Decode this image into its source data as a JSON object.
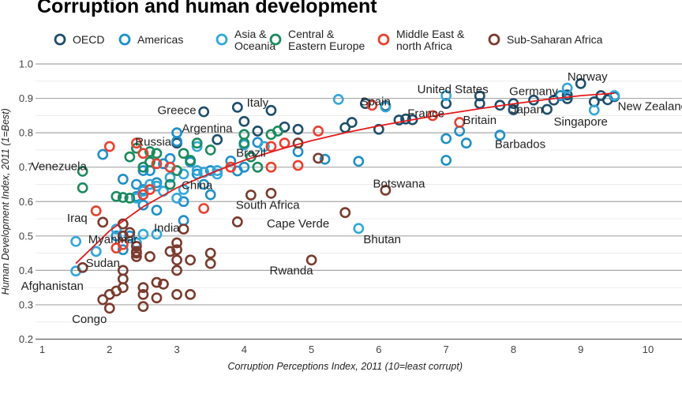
{
  "chart_data": {
    "type": "scatter",
    "title": "Corruption and human development",
    "xlabel": "Corruption Perceptions Index, 2011 (10=least corrupt)",
    "ylabel": "Human Development Index, 2011 (1=Best)",
    "xlim": [
      1,
      10
    ],
    "ylim": [
      0.2,
      1.0
    ],
    "x_ticks": [
      1,
      2,
      3,
      4,
      5,
      6,
      7,
      8,
      9,
      10
    ],
    "y_ticks": [
      0.2,
      0.3,
      0.4,
      0.5,
      0.6,
      0.7,
      0.8,
      0.9,
      1.0
    ],
    "grid": "horizontal",
    "legend_position": "top",
    "series": [
      {
        "name": "OECD",
        "color": "#1f4e6b",
        "points": [
          [
            7.5,
            0.907
          ],
          [
            8.5,
            0.868
          ],
          [
            9.0,
            0.943
          ],
          [
            9.3,
            0.908
          ],
          [
            9.5,
            0.905
          ],
          [
            8.8,
            0.899
          ],
          [
            7.5,
            0.885
          ],
          [
            8.0,
            0.885
          ],
          [
            8.0,
            0.867
          ],
          [
            8.3,
            0.895
          ],
          [
            8.6,
            0.895
          ],
          [
            8.8,
            0.91
          ],
          [
            9.4,
            0.896
          ],
          [
            9.2,
            0.89
          ],
          [
            7.0,
            0.885
          ],
          [
            6.5,
            0.838
          ],
          [
            6.1,
            0.878
          ],
          [
            5.8,
            0.885
          ],
          [
            5.6,
            0.83
          ],
          [
            5.5,
            0.815
          ],
          [
            4.8,
            0.81
          ],
          [
            4.6,
            0.817
          ],
          [
            4.4,
            0.865
          ],
          [
            3.9,
            0.874
          ],
          [
            3.4,
            0.861
          ],
          [
            4.0,
            0.833
          ],
          [
            4.2,
            0.805
          ],
          [
            3.6,
            0.78
          ],
          [
            3.0,
            0.77
          ],
          [
            6.0,
            0.81
          ],
          [
            6.3,
            0.837
          ],
          [
            6.4,
            0.84
          ],
          [
            7.8,
            0.88
          ]
        ]
      },
      {
        "name": "Americas",
        "color": "#1e8fc8",
        "points": [
          [
            8.7,
            0.908
          ],
          [
            7.8,
            0.793
          ],
          [
            7.2,
            0.805
          ],
          [
            7.0,
            0.72
          ],
          [
            7.0,
            0.783
          ],
          [
            7.3,
            0.77
          ],
          [
            5.7,
            0.717
          ],
          [
            5.2,
            0.723
          ],
          [
            4.8,
            0.745
          ],
          [
            4.2,
            0.772
          ],
          [
            3.8,
            0.718
          ],
          [
            3.9,
            0.689
          ],
          [
            3.5,
            0.69
          ],
          [
            3.4,
            0.685
          ],
          [
            3.3,
            0.68
          ],
          [
            3.2,
            0.715
          ],
          [
            3.0,
            0.8
          ],
          [
            3.0,
            0.775
          ],
          [
            2.9,
            0.725
          ],
          [
            2.7,
            0.655
          ],
          [
            2.6,
            0.69
          ],
          [
            2.5,
            0.69
          ],
          [
            2.5,
            0.635
          ],
          [
            2.4,
            0.65
          ],
          [
            2.4,
            0.615
          ],
          [
            2.2,
            0.665
          ],
          [
            2.5,
            0.59
          ],
          [
            2.7,
            0.575
          ],
          [
            2.3,
            0.5
          ],
          [
            2.1,
            0.5
          ],
          [
            1.9,
            0.737
          ],
          [
            2.2,
            0.46
          ],
          [
            1.8,
            0.455
          ],
          [
            3.1,
            0.545
          ],
          [
            3.5,
            0.62
          ],
          [
            4.0,
            0.7
          ],
          [
            2.8,
            0.71
          ],
          [
            3.4,
            0.65
          ],
          [
            3.1,
            0.6
          ]
        ]
      },
      {
        "name": "Asia & Oceania",
        "color": "#33a7d8",
        "points": [
          [
            9.5,
            0.908
          ],
          [
            9.2,
            0.866
          ],
          [
            8.8,
            0.93
          ],
          [
            7.0,
            0.908
          ],
          [
            6.1,
            0.875
          ],
          [
            5.4,
            0.897
          ],
          [
            4.3,
            0.76
          ],
          [
            4.0,
            0.765
          ],
          [
            3.1,
            0.68
          ],
          [
            3.6,
            0.69
          ],
          [
            3.4,
            0.685
          ],
          [
            3.1,
            0.635
          ],
          [
            2.9,
            0.67
          ],
          [
            2.8,
            0.63
          ],
          [
            2.7,
            0.645
          ],
          [
            2.6,
            0.65
          ],
          [
            2.5,
            0.63
          ],
          [
            2.4,
            0.61
          ],
          [
            2.7,
            0.505
          ],
          [
            3.0,
            0.61
          ],
          [
            2.5,
            0.505
          ],
          [
            2.4,
            0.48
          ],
          [
            2.1,
            0.52
          ],
          [
            1.5,
            0.484
          ],
          [
            1.8,
            0.455
          ],
          [
            1.5,
            0.398
          ],
          [
            2.2,
            0.5
          ],
          [
            5.7,
            0.522
          ],
          [
            3.3,
            0.69
          ],
          [
            3.3,
            0.76
          ],
          [
            3.6,
            0.68
          ]
        ]
      },
      {
        "name": "Central & Eastern Europe",
        "color": "#1b8a5e",
        "points": [
          [
            1.6,
            0.688
          ],
          [
            1.6,
            0.64
          ],
          [
            2.1,
            0.615
          ],
          [
            2.3,
            0.61
          ],
          [
            2.3,
            0.73
          ],
          [
            2.4,
            0.755
          ],
          [
            2.6,
            0.745
          ],
          [
            2.5,
            0.7
          ],
          [
            2.7,
            0.74
          ],
          [
            2.9,
            0.65
          ],
          [
            3.1,
            0.74
          ],
          [
            3.3,
            0.77
          ],
          [
            3.5,
            0.75
          ],
          [
            4.0,
            0.77
          ],
          [
            4.2,
            0.7
          ],
          [
            4.0,
            0.795
          ],
          [
            4.4,
            0.795
          ],
          [
            4.5,
            0.805
          ],
          [
            4.1,
            0.73
          ],
          [
            2.6,
            0.715
          ],
          [
            3.2,
            0.72
          ],
          [
            2.2,
            0.612
          ],
          [
            3.0,
            0.69
          ]
        ]
      },
      {
        "name": "Middle East & north Africa",
        "color": "#e8412f",
        "points": [
          [
            7.2,
            0.83
          ],
          [
            6.8,
            0.85
          ],
          [
            5.9,
            0.88
          ],
          [
            5.1,
            0.805
          ],
          [
            4.8,
            0.705
          ],
          [
            4.6,
            0.77
          ],
          [
            4.4,
            0.7
          ],
          [
            4.4,
            0.76
          ],
          [
            3.8,
            0.7
          ],
          [
            3.4,
            0.58
          ],
          [
            2.9,
            0.7
          ],
          [
            2.7,
            0.71
          ],
          [
            2.6,
            0.635
          ],
          [
            2.5,
            0.74
          ],
          [
            2.4,
            0.77
          ],
          [
            2.0,
            0.76
          ],
          [
            1.8,
            0.573
          ],
          [
            2.2,
            0.475
          ],
          [
            2.1,
            0.465
          ],
          [
            2.5,
            0.62
          ]
        ]
      },
      {
        "name": "Sub-Saharan Africa",
        "color": "#7a3b2e",
        "points": [
          [
            6.1,
            0.633
          ],
          [
            5.5,
            0.568
          ],
          [
            5.0,
            0.43
          ],
          [
            4.8,
            0.77
          ],
          [
            5.1,
            0.726
          ],
          [
            4.4,
            0.624
          ],
          [
            4.1,
            0.619
          ],
          [
            3.9,
            0.541
          ],
          [
            3.5,
            0.45
          ],
          [
            3.5,
            0.42
          ],
          [
            3.2,
            0.43
          ],
          [
            3.1,
            0.52
          ],
          [
            3.0,
            0.48
          ],
          [
            3.0,
            0.46
          ],
          [
            3.0,
            0.43
          ],
          [
            3.0,
            0.4
          ],
          [
            2.9,
            0.455
          ],
          [
            2.8,
            0.36
          ],
          [
            2.7,
            0.365
          ],
          [
            2.7,
            0.32
          ],
          [
            2.5,
            0.35
          ],
          [
            2.5,
            0.33
          ],
          [
            2.5,
            0.295
          ],
          [
            2.4,
            0.47
          ],
          [
            2.4,
            0.455
          ],
          [
            2.4,
            0.44
          ],
          [
            2.2,
            0.535
          ],
          [
            2.2,
            0.5
          ],
          [
            2.2,
            0.4
          ],
          [
            2.2,
            0.375
          ],
          [
            2.2,
            0.35
          ],
          [
            2.1,
            0.34
          ],
          [
            2.0,
            0.33
          ],
          [
            2.0,
            0.29
          ],
          [
            1.9,
            0.315
          ],
          [
            1.9,
            0.54
          ],
          [
            1.6,
            0.408
          ],
          [
            2.6,
            0.44
          ],
          [
            3.0,
            0.33
          ],
          [
            3.2,
            0.33
          ],
          [
            2.3,
            0.51
          ],
          [
            2.4,
            0.45
          ]
        ]
      }
    ],
    "trend_line": {
      "color": "#e41a1c",
      "points": [
        [
          1.5,
          0.42
        ],
        [
          2.0,
          0.515
        ],
        [
          2.5,
          0.585
        ],
        [
          3.0,
          0.64
        ],
        [
          3.5,
          0.682
        ],
        [
          4.0,
          0.72
        ],
        [
          4.5,
          0.75
        ],
        [
          5.0,
          0.777
        ],
        [
          5.5,
          0.8
        ],
        [
          6.0,
          0.82
        ],
        [
          6.5,
          0.838
        ],
        [
          7.0,
          0.855
        ],
        [
          7.5,
          0.87
        ],
        [
          8.0,
          0.884
        ],
        [
          8.5,
          0.897
        ],
        [
          9.0,
          0.908
        ],
        [
          9.5,
          0.915
        ]
      ]
    },
    "annotations": [
      {
        "text": "Norway",
        "x": 9.1,
        "y": 0.963,
        "anchor": "middle"
      },
      {
        "text": "United States",
        "x": 7.1,
        "y": 0.926,
        "anchor": "middle"
      },
      {
        "text": "Germany",
        "x": 8.3,
        "y": 0.921,
        "anchor": "middle"
      },
      {
        "text": "Japan",
        "x": 8.2,
        "y": 0.868,
        "anchor": "middle"
      },
      {
        "text": "New Zealand",
        "x": 9.55,
        "y": 0.877,
        "anchor": "start"
      },
      {
        "text": "Singapore",
        "x": 9.0,
        "y": 0.832,
        "anchor": "middle"
      },
      {
        "text": "Britain",
        "x": 7.5,
        "y": 0.837,
        "anchor": "middle"
      },
      {
        "text": "France",
        "x": 6.7,
        "y": 0.856,
        "anchor": "middle"
      },
      {
        "text": "Spain",
        "x": 5.95,
        "y": 0.891,
        "anchor": "middle"
      },
      {
        "text": "Barbados",
        "x": 8.1,
        "y": 0.767,
        "anchor": "middle"
      },
      {
        "text": "Italy",
        "x": 4.2,
        "y": 0.887,
        "anchor": "middle"
      },
      {
        "text": "Greece",
        "x": 3.0,
        "y": 0.866,
        "anchor": "middle"
      },
      {
        "text": "Argentina",
        "x": 3.45,
        "y": 0.813,
        "anchor": "middle"
      },
      {
        "text": "Russia",
        "x": 2.65,
        "y": 0.774,
        "anchor": "middle"
      },
      {
        "text": "Brazil",
        "x": 4.1,
        "y": 0.742,
        "anchor": "middle"
      },
      {
        "text": "Venezuela",
        "x": 1.25,
        "y": 0.703,
        "anchor": "middle"
      },
      {
        "text": "China",
        "x": 3.3,
        "y": 0.648,
        "anchor": "middle"
      },
      {
        "text": "Botswana",
        "x": 6.3,
        "y": 0.652,
        "anchor": "middle"
      },
      {
        "text": "South Africa",
        "x": 4.35,
        "y": 0.59,
        "anchor": "middle"
      },
      {
        "text": "Cape Verde",
        "x": 4.8,
        "y": 0.536,
        "anchor": "middle"
      },
      {
        "text": "Bhutan",
        "x": 6.05,
        "y": 0.49,
        "anchor": "middle"
      },
      {
        "text": "Iraq",
        "x": 1.52,
        "y": 0.552,
        "anchor": "middle"
      },
      {
        "text": "India",
        "x": 2.85,
        "y": 0.524,
        "anchor": "middle"
      },
      {
        "text": "Myanmar",
        "x": 2.05,
        "y": 0.49,
        "anchor": "middle"
      },
      {
        "text": "Sudan",
        "x": 1.9,
        "y": 0.422,
        "anchor": "middle"
      },
      {
        "text": "Rwanda",
        "x": 4.7,
        "y": 0.4,
        "anchor": "middle"
      },
      {
        "text": "Afghanistan",
        "x": 1.15,
        "y": 0.355,
        "anchor": "middle"
      },
      {
        "text": "Congo",
        "x": 1.7,
        "y": 0.258,
        "anchor": "middle"
      }
    ]
  }
}
